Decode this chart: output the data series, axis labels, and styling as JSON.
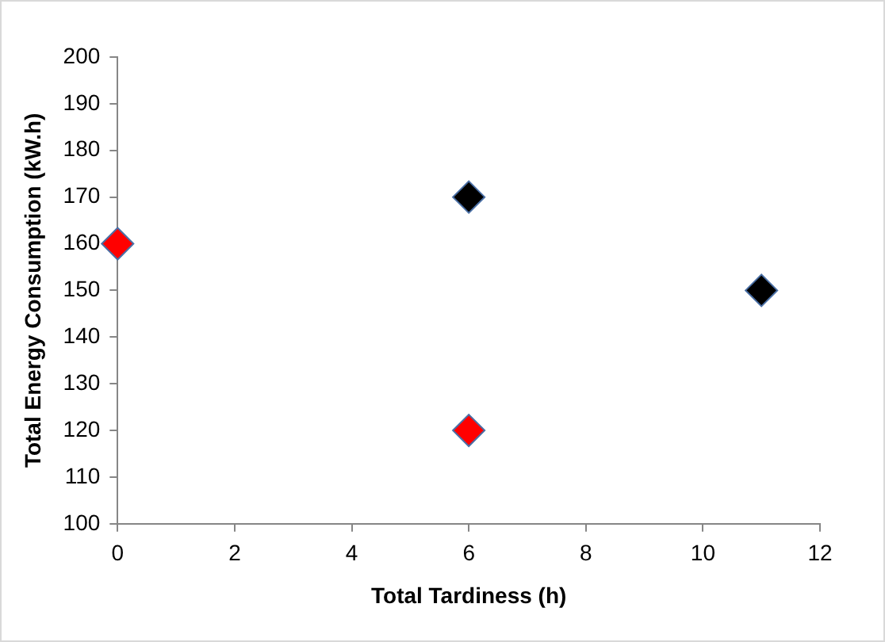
{
  "chart_data": {
    "type": "scatter",
    "xlabel": "Total Tardiness (h)",
    "ylabel": "Total Energy Consumption (kW.h)",
    "xlim": [
      0,
      12
    ],
    "xticks": [
      0,
      2,
      4,
      6,
      8,
      10,
      12
    ],
    "ylim": [
      100,
      200
    ],
    "yticks": [
      100,
      110,
      120,
      130,
      140,
      150,
      160,
      170,
      180,
      190,
      200
    ],
    "grid": false,
    "legend": false,
    "marker": "diamond",
    "series": [
      {
        "color": "#ff0000",
        "x": [
          0,
          6
        ],
        "values": [
          160,
          120
        ]
      },
      {
        "color": "#000000",
        "x": [
          6,
          11
        ],
        "values": [
          170,
          150
        ]
      }
    ]
  }
}
